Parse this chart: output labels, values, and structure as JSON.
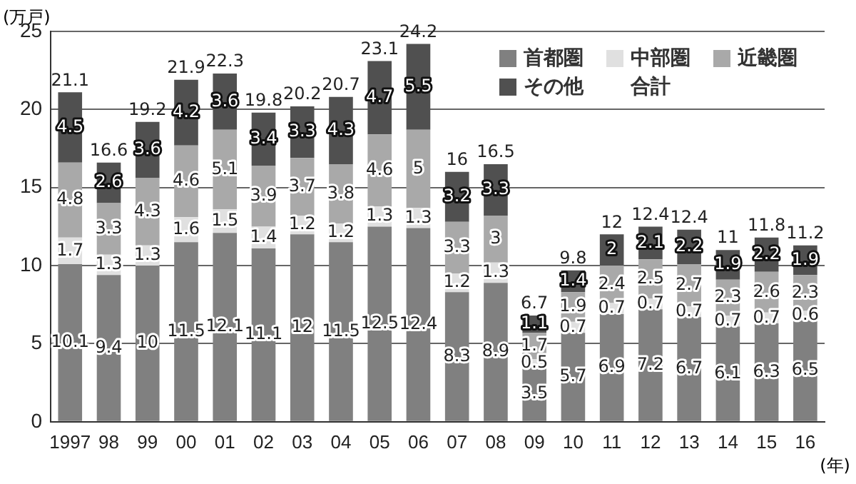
{
  "chart_data": {
    "type": "bar",
    "stacked": true,
    "ylabel": "(万戸)",
    "xlabel": "(年)",
    "categories": [
      "1997",
      "98",
      "99",
      "00",
      "01",
      "02",
      "03",
      "04",
      "05",
      "06",
      "07",
      "08",
      "09",
      "10",
      "11",
      "12",
      "13",
      "14",
      "15",
      "16"
    ],
    "series": [
      {
        "name": "首都圏",
        "color": "#808080",
        "values": [
          10.1,
          9.4,
          10,
          11.5,
          12.1,
          11.1,
          12,
          11.5,
          12.5,
          12.4,
          8.3,
          8.9,
          3.5,
          5.7,
          6.9,
          7.2,
          6.7,
          6.1,
          6.3,
          6.5
        ]
      },
      {
        "name": "中部圏",
        "color": "#e0e0e0",
        "values": [
          1.7,
          1.3,
          1.3,
          1.6,
          1.5,
          1.4,
          1.2,
          1.2,
          1.3,
          1.3,
          1.2,
          1.3,
          0.5,
          0.7,
          0.7,
          0.7,
          0.7,
          0.7,
          0.7,
          0.6
        ]
      },
      {
        "name": "近畿圏",
        "color": "#a9a9a9",
        "values": [
          4.8,
          3.3,
          4.3,
          4.6,
          5.1,
          3.9,
          3.7,
          3.8,
          4.6,
          5,
          3.3,
          3,
          1.7,
          1.9,
          2.4,
          2.5,
          2.7,
          2.3,
          2.6,
          2.3
        ]
      },
      {
        "name": "その他",
        "color": "#505050",
        "values": [
          4.5,
          2.6,
          3.6,
          4.2,
          3.6,
          3.4,
          3.3,
          4.3,
          4.7,
          5.5,
          3.2,
          3.3,
          1.1,
          1.4,
          2,
          2.1,
          2.2,
          1.9,
          2.2,
          1.9
        ]
      }
    ],
    "totals": [
      "21.1",
      "16.6",
      "19.2",
      "21.9",
      "22.3",
      "19.8",
      "20.2",
      "20.7",
      "23.1",
      "24.2",
      "16",
      "16.5",
      "6.7",
      "9.8",
      "12",
      "12.4",
      "12.4",
      "11",
      "11.8",
      "11.2"
    ],
    "annotations": [
      "合計"
    ],
    "data_labels": true,
    "ylim": [
      0,
      25
    ],
    "yticks": [
      0,
      5,
      10,
      15,
      20,
      25
    ],
    "grid": "y",
    "legend": "top right"
  }
}
